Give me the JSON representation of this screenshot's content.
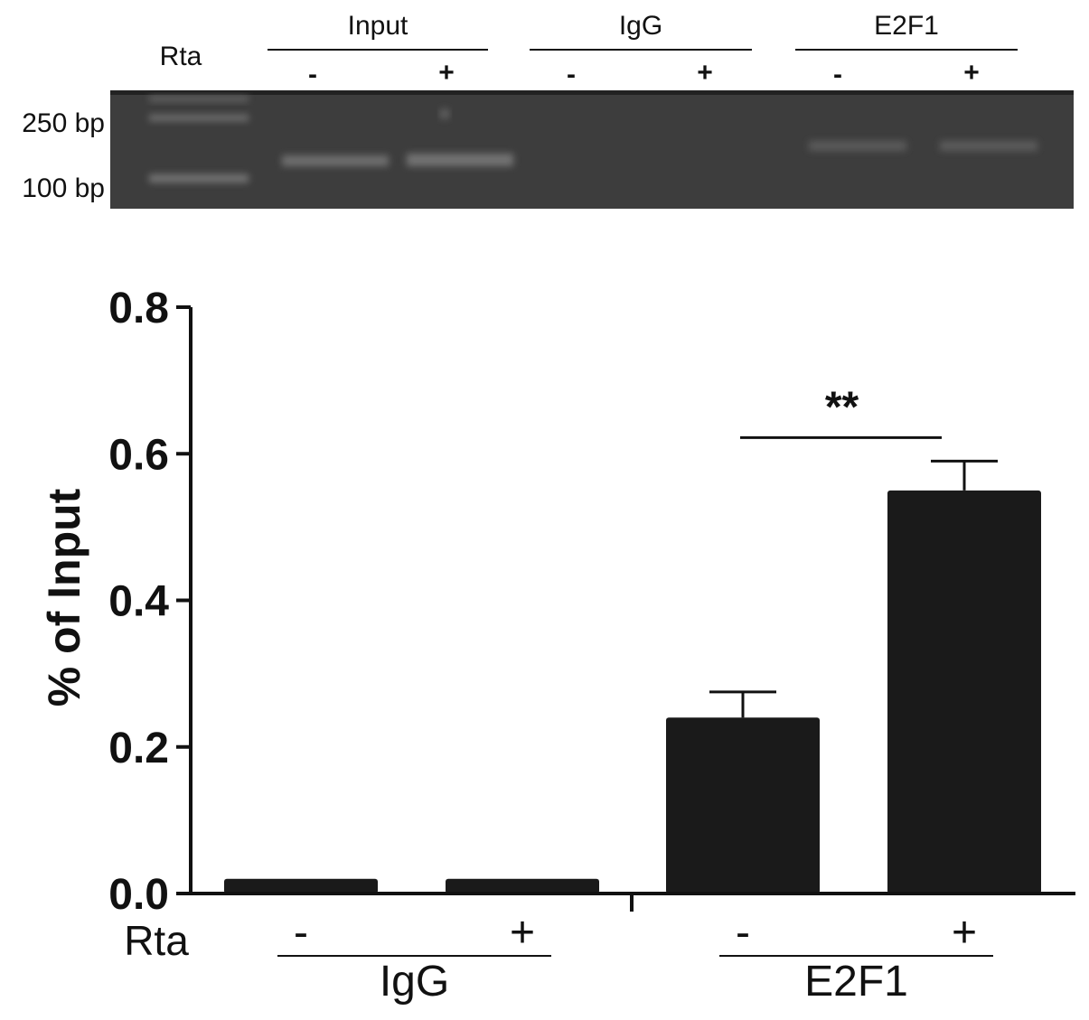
{
  "gel": {
    "row_label": "Rta",
    "groups": [
      {
        "label": "Input",
        "lanes": [
          "-",
          "+"
        ]
      },
      {
        "label": "IgG",
        "lanes": [
          "-",
          "+"
        ]
      },
      {
        "label": "E2F1",
        "lanes": [
          "-",
          "+"
        ]
      }
    ],
    "markers": [
      "250 bp",
      "100 bp"
    ]
  },
  "chart_data": {
    "type": "bar",
    "ylabel": "% of Input",
    "ylim": [
      0,
      0.8
    ],
    "yticks": [
      "0.0",
      "0.2",
      "0.4",
      "0.6",
      "0.8"
    ],
    "row_label": "Rta",
    "categories": [
      "-",
      "+",
      "-",
      "+"
    ],
    "groups": [
      {
        "label": "IgG",
        "members": [
          0,
          1
        ]
      },
      {
        "label": "E2F1",
        "members": [
          2,
          3
        ]
      }
    ],
    "values": [
      0.02,
      0.02,
      0.24,
      0.55
    ],
    "errors": [
      0.0,
      0.0,
      0.035,
      0.04
    ],
    "bar_color": "#1a1a1a",
    "significance": {
      "text": "**",
      "between": [
        2,
        3
      ]
    }
  }
}
